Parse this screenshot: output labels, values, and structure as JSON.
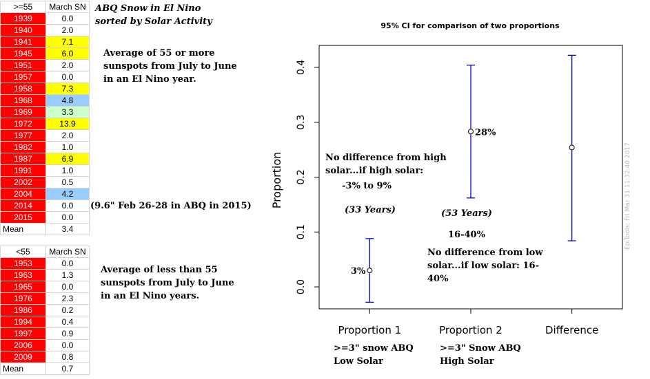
{
  "table_high": {
    "header": [
      ">=55",
      "March SN"
    ],
    "rows": [
      {
        "year": "1939",
        "value": "0.0",
        "color": "#ffffff"
      },
      {
        "year": "1940",
        "value": "2.0",
        "color": "#ffffff"
      },
      {
        "year": "1941",
        "value": "7.1",
        "color": "#ffff00"
      },
      {
        "year": "1945",
        "value": "6.0",
        "color": "#ffff00"
      },
      {
        "year": "1951",
        "value": "2.0",
        "color": "#ffffff"
      },
      {
        "year": "1957",
        "value": "0.0",
        "color": "#ffffff"
      },
      {
        "year": "1958",
        "value": "7.3",
        "color": "#ffff00"
      },
      {
        "year": "1968",
        "value": "4.8",
        "color": "#99ccff"
      },
      {
        "year": "1969",
        "value": "3.3",
        "color": "#ccffcc"
      },
      {
        "year": "1972",
        "value": "13.9",
        "color": "#ffff00"
      },
      {
        "year": "1977",
        "value": "2.0",
        "color": "#ffffff"
      },
      {
        "year": "1982",
        "value": "1.0",
        "color": "#ffffff"
      },
      {
        "year": "1987",
        "value": "6.9",
        "color": "#ffff00"
      },
      {
        "year": "1991",
        "value": "1.0",
        "color": "#ffffff"
      },
      {
        "year": "2002",
        "value": "0.5",
        "color": "#ffffff"
      },
      {
        "year": "2004",
        "value": "4.2",
        "color": "#99ccff"
      },
      {
        "year": "2014",
        "value": "0.0",
        "color": "#ffffff"
      },
      {
        "year": "2015",
        "value": "0.0",
        "color": "#ffffff"
      }
    ],
    "mean_label": "Mean",
    "mean_value": "3.4"
  },
  "table_low": {
    "header": [
      "<55",
      "March SN"
    ],
    "rows": [
      {
        "year": "1953",
        "value": "0.0",
        "color": "#ffffff"
      },
      {
        "year": "1963",
        "value": "1.3",
        "color": "#ffffff"
      },
      {
        "year": "1965",
        "value": "0.0",
        "color": "#ffffff"
      },
      {
        "year": "1976",
        "value": "2.3",
        "color": "#ffffff"
      },
      {
        "year": "1986",
        "value": "0.2",
        "color": "#ffffff"
      },
      {
        "year": "1994",
        "value": "0.4",
        "color": "#ffffff"
      },
      {
        "year": "1997",
        "value": "0.9",
        "color": "#ffffff"
      },
      {
        "year": "2006",
        "value": "0.0",
        "color": "#ffffff"
      },
      {
        "year": "2009",
        "value": "0.8",
        "color": "#ffffff"
      }
    ],
    "mean_label": "Mean",
    "mean_value": "0.7"
  },
  "notes": {
    "title_line1": "ABQ Snow in El Nino",
    "title_line2": "sorted by Solar Activity",
    "high_desc": "Average of 55 or more sunspots from July to June in an El Nino year.",
    "feb_note": "(9.6\" Feb 26-28 in ABQ in 2015)",
    "low_desc": "Average of less than 55 sunspots from July to June in an El Nino years.",
    "no_diff_high": "No difference from high solar...if high solar:",
    "range_high": "-3% to 9%",
    "years_33": "(33 Years)",
    "years_53": "(53 Years)",
    "range_low_top": "16-40%",
    "no_diff_low": "No difference from low solar...if low solar: 16-40%",
    "p1_caption": ">=3\" snow ABQ Low Solar",
    "p2_caption": ">=3\" Snow ABQ High Solar",
    "watermark": "EpiTools: Fri Mar 31 11:32:40 2017"
  },
  "chart_data": {
    "type": "scatter",
    "title": "95% CI for comparison of two proportions",
    "xlabel": "",
    "ylabel": "Proportion",
    "categories": [
      "Proportion 1",
      "Proportion 2",
      "Difference"
    ],
    "ylim": [
      -0.04,
      0.44
    ],
    "yticks": [
      "0.0",
      "0.1",
      "0.2",
      "0.3",
      "0.4"
    ],
    "points": [
      {
        "estimate": 0.03,
        "lower": -0.028,
        "upper": 0.088,
        "label": "3%"
      },
      {
        "estimate": 0.283,
        "lower": 0.162,
        "upper": 0.404,
        "label": "28%"
      },
      {
        "estimate": 0.254,
        "lower": 0.084,
        "upper": 0.422,
        "label": ""
      }
    ],
    "series_color": "#0000cc"
  }
}
